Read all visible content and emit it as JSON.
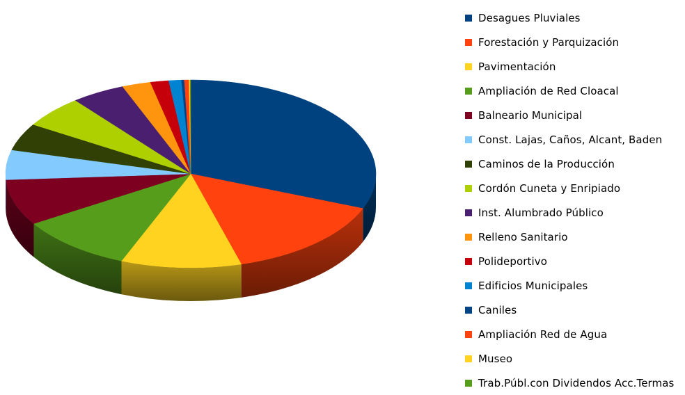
{
  "chart_data": {
    "type": "pie",
    "style": "3d",
    "title": "",
    "legend_position": "right",
    "start_angle_deg": 90,
    "direction": "clockwise",
    "slices": [
      {
        "label": "Desagues Pluviales",
        "value": 31.0,
        "color": "#00427f"
      },
      {
        "label": "Forestación y Parquización",
        "value": 14.6,
        "color": "#ff420e"
      },
      {
        "label": "Pavimentación",
        "value": 10.5,
        "color": "#ffd320"
      },
      {
        "label": "Ampliación de Red Cloacal",
        "value": 10.0,
        "color": "#579d1c"
      },
      {
        "label": "Balneario Municipal",
        "value": 7.9,
        "color": "#7e0021"
      },
      {
        "label": "Const. Lajas, Caños, Alcant, Baden",
        "value": 5.1,
        "color": "#83caff"
      },
      {
        "label": "Caminos de la Producción",
        "value": 4.7,
        "color": "#314004"
      },
      {
        "label": "Cordón Cuneta y Enripiado",
        "value": 5.5,
        "color": "#aecf00"
      },
      {
        "label": "Inst. Alumbrado Público",
        "value": 4.7,
        "color": "#4b1f6f"
      },
      {
        "label": "Relleno Sanitario",
        "value": 2.5,
        "color": "#ff950e"
      },
      {
        "label": "Polideportivo",
        "value": 1.6,
        "color": "#c5000b"
      },
      {
        "label": "Edificios Municipales",
        "value": 1.1,
        "color": "#0084d1"
      },
      {
        "label": "Caniles",
        "value": 0.25,
        "color": "#004586"
      },
      {
        "label": "Ampliación Red de Agua",
        "value": 0.4,
        "color": "#ff420e"
      },
      {
        "label": "Museo",
        "value": 0.1,
        "color": "#ffd320"
      },
      {
        "label": "Trab.Públ.con Dividendos Acc.Termas",
        "value": 0.05,
        "color": "#579d1c"
      }
    ]
  }
}
